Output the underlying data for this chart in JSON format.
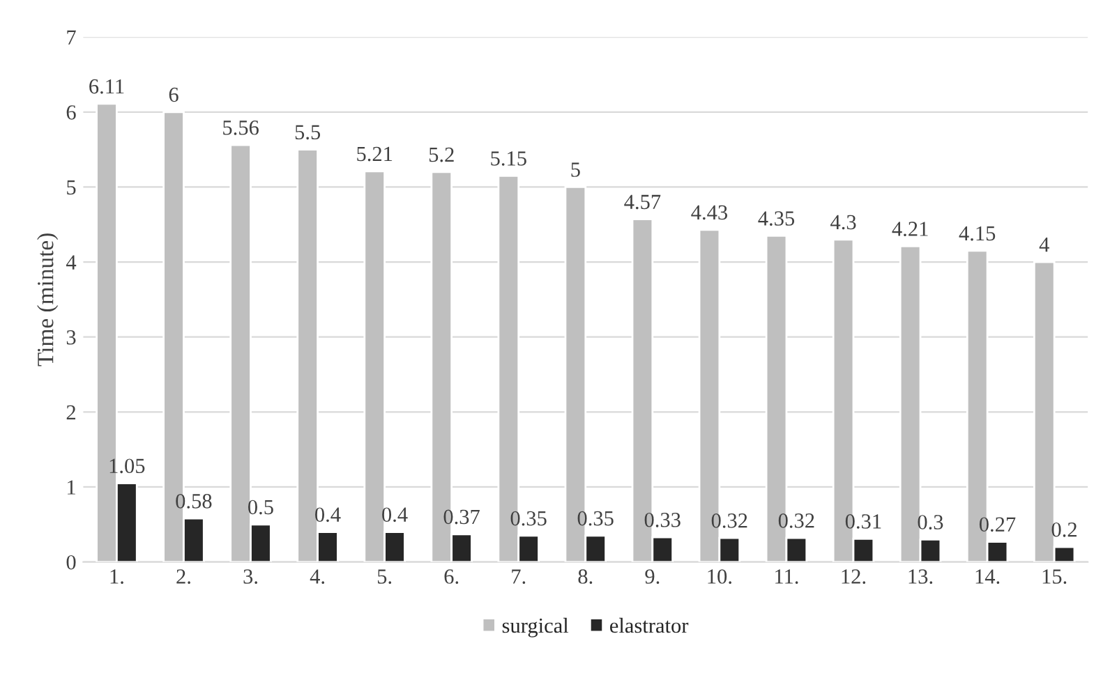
{
  "chart_data": {
    "type": "bar",
    "ylabel": "Time (minute)",
    "categories": [
      "1.",
      "2.",
      "3.",
      "4.",
      "5.",
      "6.",
      "7.",
      "8.",
      "9.",
      "10.",
      "11.",
      "12.",
      "13.",
      "14.",
      "15."
    ],
    "series": [
      {
        "name": "surgical",
        "color": "#bfbfbf",
        "values": [
          6.11,
          6,
          5.56,
          5.5,
          5.21,
          5.2,
          5.15,
          5,
          4.57,
          4.43,
          4.35,
          4.3,
          4.21,
          4.15,
          4
        ]
      },
      {
        "name": "elastrator",
        "color": "#262626",
        "values": [
          1.05,
          0.58,
          0.5,
          0.4,
          0.4,
          0.37,
          0.35,
          0.35,
          0.33,
          0.32,
          0.32,
          0.31,
          0.3,
          0.27,
          0.2
        ]
      }
    ],
    "ylim": [
      0,
      7
    ],
    "yticks": [
      0,
      1,
      2,
      3,
      4,
      5,
      6,
      7
    ],
    "grid": "y",
    "legend": "bottom",
    "data_labels": true
  }
}
